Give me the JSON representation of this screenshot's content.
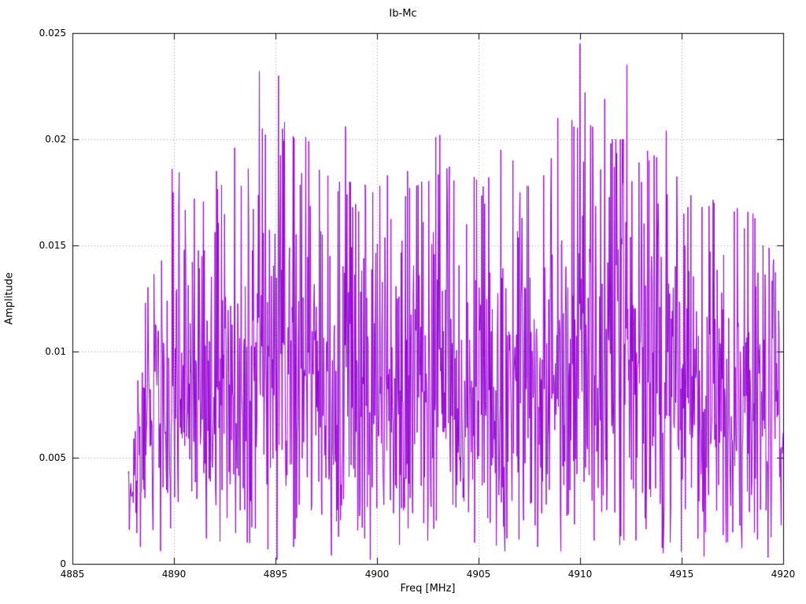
{
  "chart_data": {
    "type": "line",
    "title": "Ib-Mc",
    "xlabel": "Freq [MHz]",
    "ylabel": "Amplitude",
    "xlim": [
      4885,
      4920
    ],
    "ylim": [
      0,
      0.025
    ],
    "x_ticks": [
      4885,
      4890,
      4895,
      4900,
      4905,
      4910,
      4915,
      4920
    ],
    "x_tick_labels": [
      "4885",
      "4890",
      "4895",
      "4900",
      "4905",
      "4910",
      "4915",
      "4920"
    ],
    "y_ticks": [
      0,
      0.005,
      0.01,
      0.015,
      0.02,
      0.025
    ],
    "y_tick_labels": [
      "0",
      "0.005",
      "0.01",
      "0.015",
      "0.02",
      "0.025"
    ],
    "grid": "dotted-major",
    "legend": "none",
    "line_color": "#9400d3",
    "grid_color": "#9a9a9a",
    "border_color": "#000000",
    "signal": {
      "description": "dense noisy spectrum trace",
      "x_start": 4887.75,
      "x_end": 4920.0,
      "points": 1300,
      "seed": 1337,
      "noise_model": "rayleigh",
      "envelope": [
        [
          4887.75,
          0.006
        ],
        [
          4888.2,
          0.01
        ],
        [
          4888.8,
          0.0135
        ],
        [
          4889.6,
          0.016
        ],
        [
          4890.2,
          0.0185
        ],
        [
          4891.5,
          0.017
        ],
        [
          4893.0,
          0.0185
        ],
        [
          4894.3,
          0.021
        ],
        [
          4895.4,
          0.021
        ],
        [
          4896.5,
          0.019
        ],
        [
          4898.0,
          0.018
        ],
        [
          4899.5,
          0.018
        ],
        [
          4901.0,
          0.0175
        ],
        [
          4902.5,
          0.018
        ],
        [
          4904.0,
          0.019
        ],
        [
          4905.5,
          0.0175
        ],
        [
          4907.0,
          0.018
        ],
        [
          4908.5,
          0.019
        ],
        [
          4910.0,
          0.021
        ],
        [
          4911.5,
          0.02
        ],
        [
          4912.5,
          0.02
        ],
        [
          4914.0,
          0.019
        ],
        [
          4915.5,
          0.0175
        ],
        [
          4917.0,
          0.017
        ],
        [
          4918.5,
          0.0165
        ],
        [
          4919.5,
          0.0145
        ],
        [
          4920.0,
          0.0115
        ]
      ],
      "peaks": [
        [
          4889.9,
          0.0186
        ],
        [
          4891.0,
          0.0172
        ],
        [
          4892.1,
          0.0185
        ],
        [
          4893.0,
          0.0196
        ],
        [
          4893.3,
          0.0178
        ],
        [
          4894.2,
          0.0232
        ],
        [
          4894.35,
          0.0205
        ],
        [
          4895.15,
          0.023
        ],
        [
          4895.45,
          0.0208
        ],
        [
          4896.3,
          0.0184
        ],
        [
          4896.5,
          0.0201
        ],
        [
          4896.65,
          0.0199
        ],
        [
          4897.3,
          0.0155
        ],
        [
          4898.45,
          0.0206
        ],
        [
          4898.8,
          0.0168
        ],
        [
          4899.1,
          0.0166
        ],
        [
          4899.8,
          0.0175
        ],
        [
          4900.15,
          0.0178
        ],
        [
          4900.5,
          0.0183
        ],
        [
          4901.5,
          0.0185
        ],
        [
          4902.2,
          0.018
        ],
        [
          4902.9,
          0.0201
        ],
        [
          4903.1,
          0.0202
        ],
        [
          4904.4,
          0.016
        ],
        [
          4905.5,
          0.0182
        ],
        [
          4906.1,
          0.0195
        ],
        [
          4906.7,
          0.019
        ],
        [
          4907.4,
          0.0178
        ],
        [
          4908.2,
          0.0183
        ],
        [
          4908.9,
          0.021
        ],
        [
          4909.6,
          0.0209
        ],
        [
          4910.0,
          0.0245
        ],
        [
          4910.25,
          0.0222
        ],
        [
          4911.2,
          0.0219
        ],
        [
          4911.5,
          0.0198
        ],
        [
          4912.3,
          0.0235
        ],
        [
          4912.9,
          0.0189
        ],
        [
          4913.4,
          0.019
        ],
        [
          4914.25,
          0.0204
        ],
        [
          4915.3,
          0.0168
        ],
        [
          4916.0,
          0.0168
        ],
        [
          4916.6,
          0.017
        ],
        [
          4917.6,
          0.0166
        ],
        [
          4918.1,
          0.0158
        ],
        [
          4918.5,
          0.0165
        ],
        [
          4919.0,
          0.015
        ]
      ],
      "dips": [
        [
          4888.35,
          0.0008
        ],
        [
          4889.35,
          0.0006
        ],
        [
          4891.6,
          0.0012
        ],
        [
          4893.6,
          0.001
        ],
        [
          4895.9,
          0.0008
        ],
        [
          4897.75,
          0.0004
        ],
        [
          4899.4,
          0.0012
        ],
        [
          4901.1,
          0.0009
        ],
        [
          4902.5,
          0.0011
        ],
        [
          4904.8,
          0.001
        ],
        [
          4906.4,
          0.0012
        ],
        [
          4907.9,
          0.0008
        ],
        [
          4909.05,
          0.0006
        ],
        [
          4910.7,
          0.0011
        ],
        [
          4912.0,
          0.0013
        ],
        [
          4914.1,
          0.0005
        ],
        [
          4915.8,
          0.0012
        ],
        [
          4917.2,
          0.001
        ],
        [
          4919.25,
          0.0003
        ]
      ]
    }
  }
}
